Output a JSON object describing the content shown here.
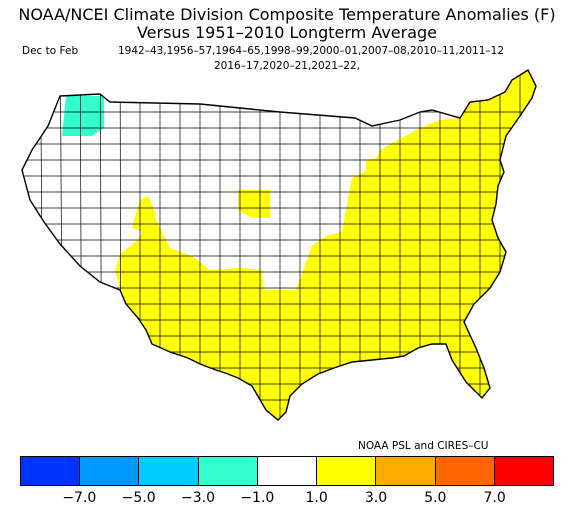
{
  "title_line1": "NOAA/NCEI Climate Division Composite Temperature Anomalies (F)",
  "title_line2": "Versus 1951–2010 Longterm Average",
  "season": "Dec to Feb",
  "years_line1": "1942–43,1956–57,1964–65,1998–99,2000–01,2007–08,2010–11,2011–12",
  "years_line2": "2016–17,2020–21,2021–22,",
  "credit": "NOAA PSL and CIRES–CU",
  "map_colors": {
    "positive_1_to_3": "#ffff00",
    "neutral": "#ffffff",
    "negative_3_to_1": "#33ffcc",
    "border": "#000000"
  },
  "colorbar": {
    "colors": [
      "#0033ff",
      "#0099ff",
      "#00ccff",
      "#33ffcc",
      "#ffffff",
      "#ffff00",
      "#ffaa00",
      "#ff6600",
      "#ff0000"
    ],
    "tick_labels": [
      "−7.0",
      "−5.0",
      "−3.0",
      "−1.0",
      "1.0",
      "3.0",
      "5.0",
      "7.0"
    ]
  }
}
